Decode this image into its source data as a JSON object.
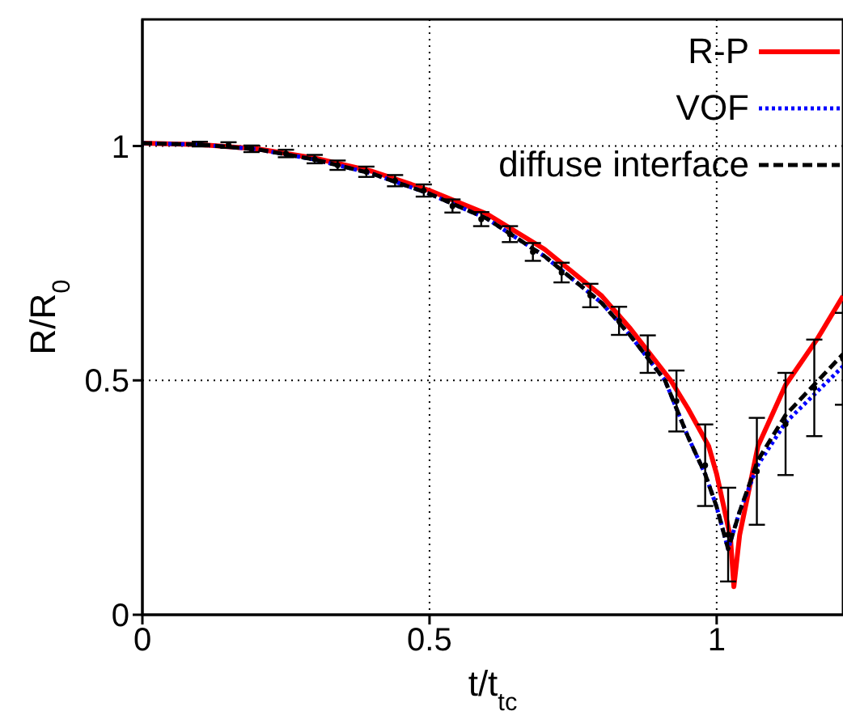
{
  "chart_data": {
    "type": "line",
    "xlabel": "t/t$_{tc}$",
    "ylabel": "R/R$_{0}$",
    "xlim": [
      0,
      1.22
    ],
    "ylim": [
      0,
      1.27
    ],
    "xticks": [
      0,
      0.5,
      1
    ],
    "yticks": [
      0,
      0.5,
      1
    ],
    "grid": true,
    "legend": "top right",
    "series": [
      {
        "name": "R-P",
        "color": "#ff0000",
        "line_style": "solid",
        "marker": "none",
        "x": [
          0,
          0.1,
          0.2,
          0.3,
          0.4,
          0.5,
          0.6,
          0.7,
          0.8,
          0.85,
          0.92,
          0.95,
          0.986,
          1.0,
          1.024,
          1.03,
          1.04,
          1.072,
          1.12,
          1.176,
          1.22
        ],
        "values": [
          1.006,
          1.003,
          0.994,
          0.974,
          0.946,
          0.905,
          0.855,
          0.78,
          0.68,
          0.61,
          0.5,
          0.44,
          0.36,
          0.3,
          0.165,
          0.06,
          0.17,
          0.36,
          0.49,
          0.59,
          0.68
        ]
      },
      {
        "name": "VOF",
        "color": "#0000ff",
        "line_style": "dotted",
        "marker": "none",
        "x": [
          0,
          0.1,
          0.2,
          0.3,
          0.4,
          0.5,
          0.6,
          0.7,
          0.8,
          0.85,
          0.91,
          0.95,
          0.98,
          1.0,
          1.02,
          1.04,
          1.072,
          1.12,
          1.22
        ],
        "values": [
          1.006,
          1.003,
          0.993,
          0.971,
          0.941,
          0.898,
          0.845,
          0.765,
          0.665,
          0.595,
          0.5,
          0.38,
          0.3,
          0.23,
          0.14,
          0.22,
          0.32,
          0.41,
          0.53
        ]
      },
      {
        "name": "diffuse interface",
        "color": "#000000",
        "line_style": "dashed",
        "marker": "none",
        "x": [
          0,
          0.1,
          0.2,
          0.3,
          0.4,
          0.5,
          0.6,
          0.7,
          0.8,
          0.85,
          0.91,
          0.95,
          0.98,
          1.0,
          1.02,
          1.04,
          1.072,
          1.12,
          1.22
        ],
        "values": [
          1.006,
          1.003,
          0.993,
          0.971,
          0.941,
          0.898,
          0.845,
          0.765,
          0.665,
          0.595,
          0.5,
          0.38,
          0.3,
          0.23,
          0.14,
          0.22,
          0.33,
          0.426,
          0.556
        ]
      },
      {
        "type": "scatter",
        "color": "#000000",
        "marker": "circle",
        "x": [
          0.1,
          0.15,
          0.19,
          0.25,
          0.3,
          0.34,
          0.39,
          0.44,
          0.49,
          0.54,
          0.59,
          0.64,
          0.68,
          0.73,
          0.78,
          0.83,
          0.88,
          0.93,
          0.98,
          1.02,
          1.07,
          1.12,
          1.17,
          1.22
        ],
        "values": [
          1.004,
          1.002,
          0.994,
          0.984,
          0.972,
          0.959,
          0.945,
          0.926,
          0.905,
          0.872,
          0.844,
          0.812,
          0.774,
          0.73,
          0.681,
          0.627,
          0.556,
          0.456,
          0.319,
          0.171,
          0.306,
          0.407,
          0.484,
          0.546
        ],
        "errors": [
          0.005,
          0.006,
          0.007,
          0.008,
          0.009,
          0.01,
          0.011,
          0.012,
          0.013,
          0.014,
          0.015,
          0.017,
          0.019,
          0.021,
          0.025,
          0.03,
          0.04,
          0.065,
          0.087,
          0.1,
          0.114,
          0.109,
          0.103,
          0.098
        ]
      }
    ]
  }
}
